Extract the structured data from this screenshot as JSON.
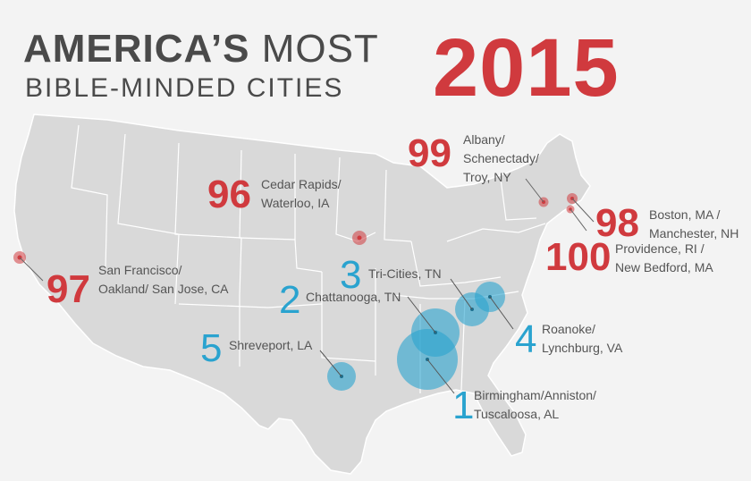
{
  "title": {
    "line1_bold": "AMERICA’S",
    "line1_rest": " MOST",
    "line2": "BIBLE-MINDED CITIES",
    "year": "2015"
  },
  "colors": {
    "red": "#d03a3e",
    "blue": "#2aa3cf",
    "map": "#d9d9d9",
    "text": "#4a4a4a"
  },
  "markers": [
    {
      "rank": "1",
      "label": "Birmingham/Anniston/\nTuscaloosa, AL",
      "type": "most"
    },
    {
      "rank": "2",
      "label": "Chattanooga, TN",
      "type": "most"
    },
    {
      "rank": "3",
      "label": "Tri-Cities, TN",
      "type": "most"
    },
    {
      "rank": "4",
      "label": "Roanoke/\nLynchburg, VA",
      "type": "most"
    },
    {
      "rank": "5",
      "label": "Shreveport, LA",
      "type": "most"
    },
    {
      "rank": "96",
      "label": "Cedar Rapids/\nWaterloo, IA",
      "type": "least"
    },
    {
      "rank": "97",
      "label": "San Francisco/\nOakland/ San Jose, CA",
      "type": "least"
    },
    {
      "rank": "98",
      "label": "Boston, MA /\nManchester, NH",
      "type": "least"
    },
    {
      "rank": "99",
      "label": "Albany/\nSchenectady/\nTroy, NY",
      "type": "least"
    },
    {
      "rank": "100",
      "label": "Providence, RI /\nNew Bedford, MA",
      "type": "least"
    }
  ]
}
